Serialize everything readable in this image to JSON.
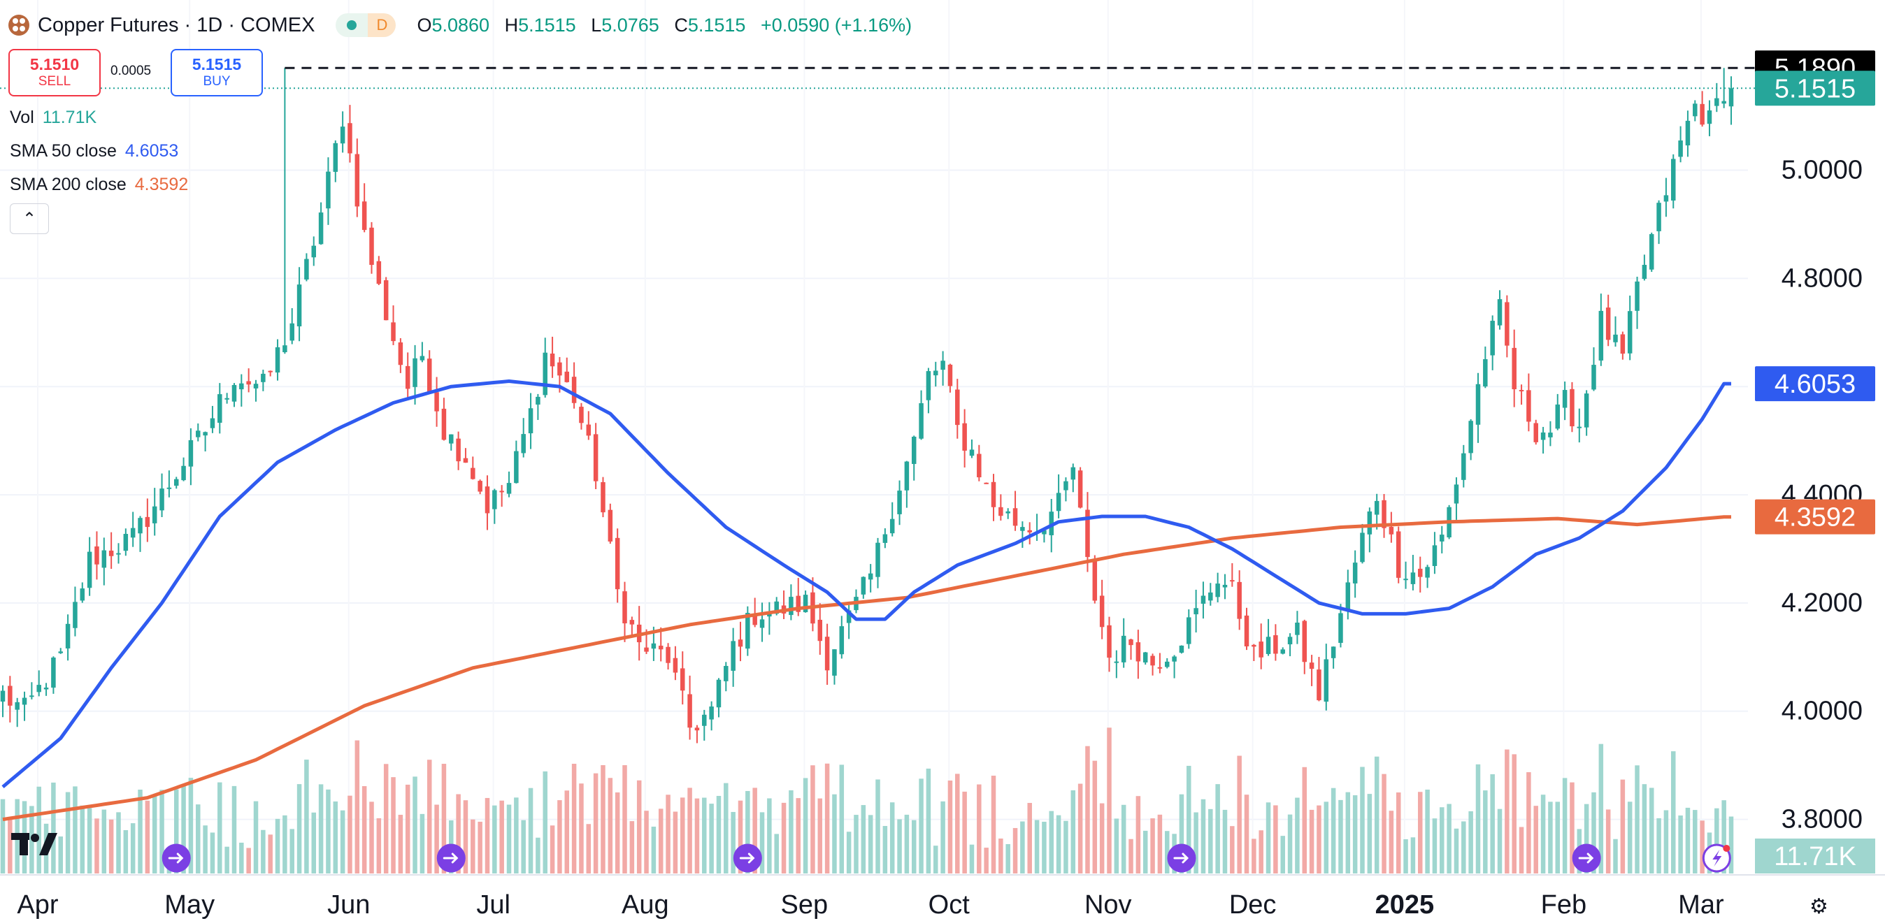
{
  "header": {
    "title": "Copper Futures · 1D · COMEX",
    "interval_badge": "D",
    "ohlc": [
      {
        "k": "O",
        "v": "5.0860"
      },
      {
        "k": "H",
        "v": "5.1515"
      },
      {
        "k": "L",
        "v": "5.0765"
      },
      {
        "k": "C",
        "v": "5.1515"
      }
    ],
    "change": "+0.0590 (+1.16%)"
  },
  "trade": {
    "sell_price": "5.1510",
    "sell_label": "SELL",
    "spread": "0.0005",
    "buy_price": "5.1515",
    "buy_label": "BUY"
  },
  "indicators": {
    "vol_label": "Vol",
    "vol_value": "11.71K",
    "sma50_label": "SMA 50 close",
    "sma50_value": "4.6053",
    "sma200_label": "SMA 200 close",
    "sma200_value": "4.3592",
    "collapse_icon": "chevron-up"
  },
  "colors": {
    "up": "#26a69a",
    "down": "#ef5350",
    "up_volume": "#9fd6cf",
    "down_volume": "#f2a9a6",
    "sma50": "#2f5bf0",
    "sma200": "#e86a3f",
    "high_line_label_bg": "#000000",
    "last_price_label_bg": "#26a69a"
  },
  "chart_data": {
    "type": "candlestick",
    "ylim": [
      3.7,
      5.25
    ],
    "y_ticks": [
      "5.0000",
      "4.8000",
      "4.4000",
      "4.2000",
      "4.0000",
      "3.8000"
    ],
    "x_ticks": [
      "Apr",
      "May",
      "Jun",
      "Jul",
      "Aug",
      "Sep",
      "Oct",
      "Nov",
      "Dec",
      "2025",
      "Feb",
      "Mar"
    ],
    "price_labels": {
      "high": "5.1890",
      "last": "5.1515",
      "sma50": "4.6053",
      "sma200": "4.3592",
      "volume": "11.71K"
    },
    "high_line": 5.189,
    "last_price": 5.1515,
    "anchors": [
      [
        0,
        4.03
      ],
      [
        3,
        4.0
      ],
      [
        8,
        4.1
      ],
      [
        12,
        4.28
      ],
      [
        18,
        4.32
      ],
      [
        24,
        4.44
      ],
      [
        28,
        4.52
      ],
      [
        32,
        4.62
      ],
      [
        36,
        4.6
      ],
      [
        40,
        4.72
      ],
      [
        44,
        4.92
      ],
      [
        47,
        5.1
      ],
      [
        50,
        4.88
      ],
      [
        52,
        4.78
      ],
      [
        56,
        4.6
      ],
      [
        58,
        4.66
      ],
      [
        61,
        4.52
      ],
      [
        64,
        4.47
      ],
      [
        67,
        4.38
      ],
      [
        70,
        4.42
      ],
      [
        73,
        4.55
      ],
      [
        75,
        4.66
      ],
      [
        79,
        4.58
      ],
      [
        82,
        4.44
      ],
      [
        85,
        4.22
      ],
      [
        88,
        4.12
      ],
      [
        92,
        4.1
      ],
      [
        95,
        3.97
      ],
      [
        98,
        4.0
      ],
      [
        101,
        4.12
      ],
      [
        104,
        4.18
      ],
      [
        108,
        4.19
      ],
      [
        111,
        4.2
      ],
      [
        114,
        4.1
      ],
      [
        117,
        4.17
      ],
      [
        120,
        4.25
      ],
      [
        123,
        4.38
      ],
      [
        126,
        4.5
      ],
      [
        128,
        4.62
      ],
      [
        130,
        4.64
      ],
      [
        132,
        4.52
      ],
      [
        134,
        4.48
      ],
      [
        137,
        4.38
      ],
      [
        140,
        4.35
      ],
      [
        143,
        4.34
      ],
      [
        146,
        4.38
      ],
      [
        148,
        4.45
      ],
      [
        150,
        4.27
      ],
      [
        153,
        4.1
      ],
      [
        156,
        4.13
      ],
      [
        159,
        4.09
      ],
      [
        162,
        4.12
      ],
      [
        165,
        4.18
      ],
      [
        168,
        4.25
      ],
      [
        170,
        4.22
      ],
      [
        173,
        4.1
      ],
      [
        176,
        4.12
      ],
      [
        179,
        4.14
      ],
      [
        182,
        4.03
      ],
      [
        185,
        4.18
      ],
      [
        188,
        4.32
      ],
      [
        190,
        4.4
      ],
      [
        193,
        4.27
      ],
      [
        196,
        4.25
      ],
      [
        199,
        4.32
      ],
      [
        202,
        4.48
      ],
      [
        205,
        4.66
      ],
      [
        207,
        4.74
      ],
      [
        209,
        4.6
      ],
      [
        212,
        4.52
      ],
      [
        214,
        4.52
      ],
      [
        216,
        4.57
      ],
      [
        218,
        4.53
      ],
      [
        221,
        4.72
      ],
      [
        224,
        4.65
      ],
      [
        226,
        4.78
      ],
      [
        229,
        4.92
      ],
      [
        232,
        5.05
      ],
      [
        234,
        5.12
      ],
      [
        236,
        5.09
      ],
      [
        238,
        5.1515
      ]
    ],
    "sma50_points": [
      [
        0,
        3.86
      ],
      [
        8,
        3.95
      ],
      [
        15,
        4.08
      ],
      [
        22,
        4.2
      ],
      [
        30,
        4.36
      ],
      [
        38,
        4.46
      ],
      [
        46,
        4.52
      ],
      [
        54,
        4.57
      ],
      [
        62,
        4.6
      ],
      [
        70,
        4.61
      ],
      [
        77,
        4.6
      ],
      [
        84,
        4.55
      ],
      [
        92,
        4.44
      ],
      [
        100,
        4.34
      ],
      [
        108,
        4.27
      ],
      [
        114,
        4.22
      ],
      [
        118,
        4.17
      ],
      [
        122,
        4.17
      ],
      [
        126,
        4.22
      ],
      [
        132,
        4.27
      ],
      [
        140,
        4.31
      ],
      [
        146,
        4.35
      ],
      [
        152,
        4.36
      ],
      [
        158,
        4.36
      ],
      [
        164,
        4.34
      ],
      [
        170,
        4.3
      ],
      [
        176,
        4.25
      ],
      [
        182,
        4.2
      ],
      [
        188,
        4.18
      ],
      [
        194,
        4.18
      ],
      [
        200,
        4.19
      ],
      [
        206,
        4.23
      ],
      [
        212,
        4.29
      ],
      [
        218,
        4.32
      ],
      [
        224,
        4.37
      ],
      [
        230,
        4.45
      ],
      [
        235,
        4.54
      ],
      [
        238,
        4.6053
      ]
    ],
    "sma200_points": [
      [
        0,
        3.8
      ],
      [
        20,
        3.84
      ],
      [
        35,
        3.91
      ],
      [
        50,
        4.01
      ],
      [
        65,
        4.08
      ],
      [
        80,
        4.12
      ],
      [
        95,
        4.16
      ],
      [
        110,
        4.19
      ],
      [
        125,
        4.21
      ],
      [
        140,
        4.25
      ],
      [
        155,
        4.29
      ],
      [
        170,
        4.32
      ],
      [
        185,
        4.34
      ],
      [
        200,
        4.35
      ],
      [
        215,
        4.356
      ],
      [
        226,
        4.345
      ],
      [
        232,
        4.352
      ],
      [
        238,
        4.3592
      ]
    ],
    "high_at_index": 39,
    "event_markers": [
      24,
      62,
      103,
      163,
      219,
      237
    ]
  },
  "footer": {
    "tv_logo": "tradingview-logo",
    "settings_icon": "gear-icon"
  }
}
